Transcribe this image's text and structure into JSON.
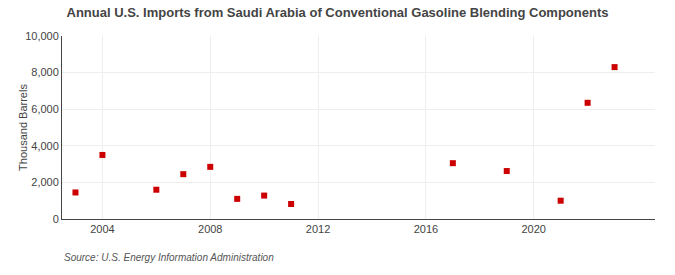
{
  "chart_data": {
    "type": "scatter",
    "title": "Annual U.S. Imports from Saudi Arabia of Conventional Gasoline Blending Components",
    "y_label": "Thousand Barrels",
    "annotations": [
      "Source: U.S. Energy Information Administration"
    ],
    "x": [
      2003,
      2004,
      2006,
      2007,
      2008,
      2009,
      2010,
      2011,
      2017,
      2019,
      2021,
      2022,
      2023
    ],
    "values": [
      1450,
      3500,
      1600,
      2450,
      2850,
      1100,
      1280,
      820,
      3050,
      2620,
      1000,
      6350,
      8300
    ],
    "color": "#cc0000",
    "marker": "square",
    "xlim": [
      2002.5,
      2024.5
    ],
    "xticks": [
      2004,
      2008,
      2012,
      2016,
      2020
    ],
    "ylim": [
      0,
      10000
    ],
    "yticks": [
      0,
      {
        "value": 2000,
        "label": "2,000"
      },
      {
        "value": 4000,
        "label": "4,000"
      },
      {
        "value": 6000,
        "label": "6,000"
      },
      {
        "value": 8000,
        "label": "8,000"
      },
      {
        "value": 10000,
        "label": "10,000"
      }
    ],
    "grid": true
  }
}
